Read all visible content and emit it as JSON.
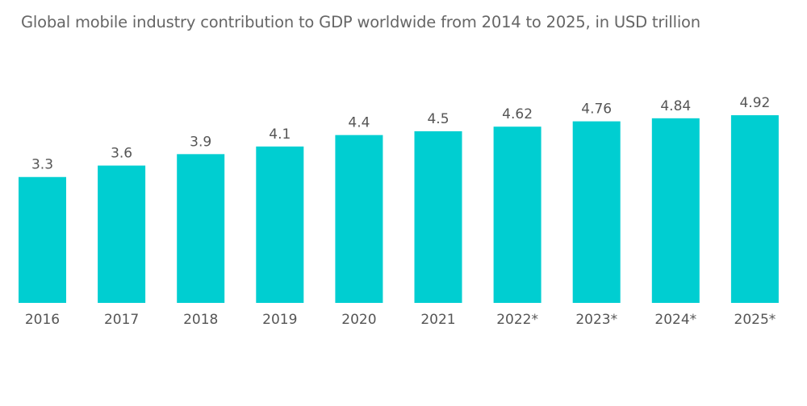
{
  "chart_data": {
    "type": "bar",
    "title": "Global mobile industry contribution to GDP worldwide from 2014 to 2025, in USD trillion",
    "xlabel": "",
    "ylabel": "",
    "categories": [
      "2016",
      "2017",
      "2018",
      "2019",
      "2020",
      "2021",
      "2022*",
      "2023*",
      "2024*",
      "2025*"
    ],
    "values": [
      3.3,
      3.6,
      3.9,
      4.1,
      4.4,
      4.5,
      4.62,
      4.76,
      4.84,
      4.92
    ],
    "value_labels": [
      "3.3",
      "3.6",
      "3.9",
      "4.1",
      "4.4",
      "4.5",
      "4.62",
      "4.76",
      "4.84",
      "4.92"
    ],
    "ylim": [
      0,
      5
    ],
    "grid": false,
    "legend": "none",
    "bar_color": "#00CED1"
  }
}
